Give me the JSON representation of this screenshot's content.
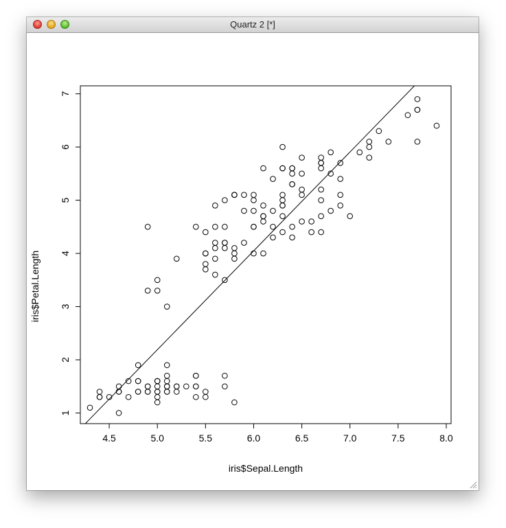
{
  "window": {
    "title": "Quartz 2 [*]"
  },
  "chart_data": {
    "type": "scatter",
    "xlabel": "iris$Sepal.Length",
    "ylabel": "iris$Petal.Length",
    "xlim": [
      4.2,
      8.05
    ],
    "ylim": [
      0.8,
      7.15
    ],
    "xticks": [
      "4.5",
      "5.0",
      "5.5",
      "6.0",
      "6.5",
      "7.0",
      "7.5",
      "8.0"
    ],
    "yticks": [
      "1",
      "2",
      "3",
      "4",
      "5",
      "6",
      "7"
    ],
    "regression_line": {
      "intercept": -7.1,
      "slope": 1.858
    },
    "x": [
      5.1,
      4.9,
      4.7,
      4.6,
      5.0,
      5.4,
      4.6,
      5.0,
      4.4,
      4.9,
      5.4,
      4.8,
      4.8,
      4.3,
      5.8,
      5.7,
      5.4,
      5.1,
      5.7,
      5.1,
      5.4,
      5.1,
      4.6,
      5.1,
      4.8,
      5.0,
      5.0,
      5.2,
      5.2,
      4.7,
      4.8,
      5.4,
      5.2,
      5.5,
      4.9,
      5.0,
      5.5,
      4.9,
      4.4,
      5.1,
      5.0,
      4.5,
      4.4,
      5.0,
      5.1,
      4.8,
      5.1,
      4.6,
      5.3,
      5.0,
      7.0,
      6.4,
      6.9,
      5.5,
      6.5,
      5.7,
      6.3,
      4.9,
      6.6,
      5.2,
      5.0,
      5.9,
      6.0,
      6.1,
      5.6,
      6.7,
      5.6,
      5.8,
      6.2,
      5.6,
      5.9,
      6.1,
      6.3,
      6.1,
      6.4,
      6.6,
      6.8,
      6.7,
      6.0,
      5.7,
      5.5,
      5.5,
      5.8,
      6.0,
      5.4,
      6.0,
      6.7,
      6.3,
      5.6,
      5.5,
      5.5,
      6.1,
      5.8,
      5.0,
      5.6,
      5.7,
      5.7,
      6.2,
      5.1,
      5.7,
      6.3,
      5.8,
      7.1,
      6.3,
      6.5,
      7.6,
      4.9,
      7.3,
      6.7,
      7.2,
      6.5,
      6.4,
      6.8,
      5.7,
      5.8,
      6.4,
      6.5,
      7.7,
      7.7,
      6.0,
      6.9,
      5.6,
      7.7,
      6.3,
      6.7,
      7.2,
      6.2,
      6.1,
      6.4,
      7.2,
      7.4,
      7.9,
      6.4,
      6.3,
      6.1,
      7.7,
      6.3,
      6.4,
      6.0,
      6.9,
      6.7,
      6.9,
      5.8,
      6.8,
      6.7,
      6.7,
      6.3,
      6.5,
      6.2,
      5.9
    ],
    "y": [
      1.4,
      1.4,
      1.3,
      1.5,
      1.4,
      1.7,
      1.4,
      1.5,
      1.4,
      1.5,
      1.5,
      1.6,
      1.4,
      1.1,
      1.2,
      1.5,
      1.3,
      1.4,
      1.7,
      1.5,
      1.7,
      1.5,
      1.0,
      1.7,
      1.9,
      1.6,
      1.6,
      1.5,
      1.4,
      1.6,
      1.6,
      1.5,
      1.5,
      1.4,
      1.5,
      1.2,
      1.3,
      1.4,
      1.3,
      1.5,
      1.3,
      1.3,
      1.3,
      1.6,
      1.9,
      1.4,
      1.6,
      1.4,
      1.5,
      1.4,
      4.7,
      4.5,
      4.9,
      4.0,
      4.6,
      4.5,
      4.7,
      3.3,
      4.6,
      3.9,
      3.5,
      4.2,
      4.0,
      4.7,
      3.6,
      4.4,
      4.5,
      4.1,
      4.5,
      3.9,
      4.8,
      4.0,
      4.9,
      4.7,
      4.3,
      4.4,
      4.8,
      5.0,
      4.5,
      3.5,
      3.8,
      3.7,
      3.9,
      5.1,
      4.5,
      4.5,
      4.7,
      4.4,
      4.1,
      4.0,
      4.4,
      4.6,
      4.0,
      3.3,
      4.2,
      4.2,
      4.2,
      4.3,
      3.0,
      4.1,
      6.0,
      5.1,
      5.9,
      5.6,
      5.8,
      6.6,
      4.5,
      6.3,
      5.8,
      6.1,
      5.1,
      5.3,
      5.5,
      5.0,
      5.1,
      5.3,
      5.5,
      6.7,
      6.9,
      5.0,
      5.7,
      4.9,
      6.7,
      4.9,
      5.7,
      6.0,
      4.8,
      4.9,
      5.6,
      5.8,
      6.1,
      6.4,
      5.6,
      5.1,
      5.6,
      6.1,
      5.6,
      5.5,
      4.8,
      5.4,
      5.6,
      5.1,
      5.1,
      5.9,
      5.7,
      5.2,
      5.0,
      5.2,
      5.4,
      5.1
    ]
  }
}
